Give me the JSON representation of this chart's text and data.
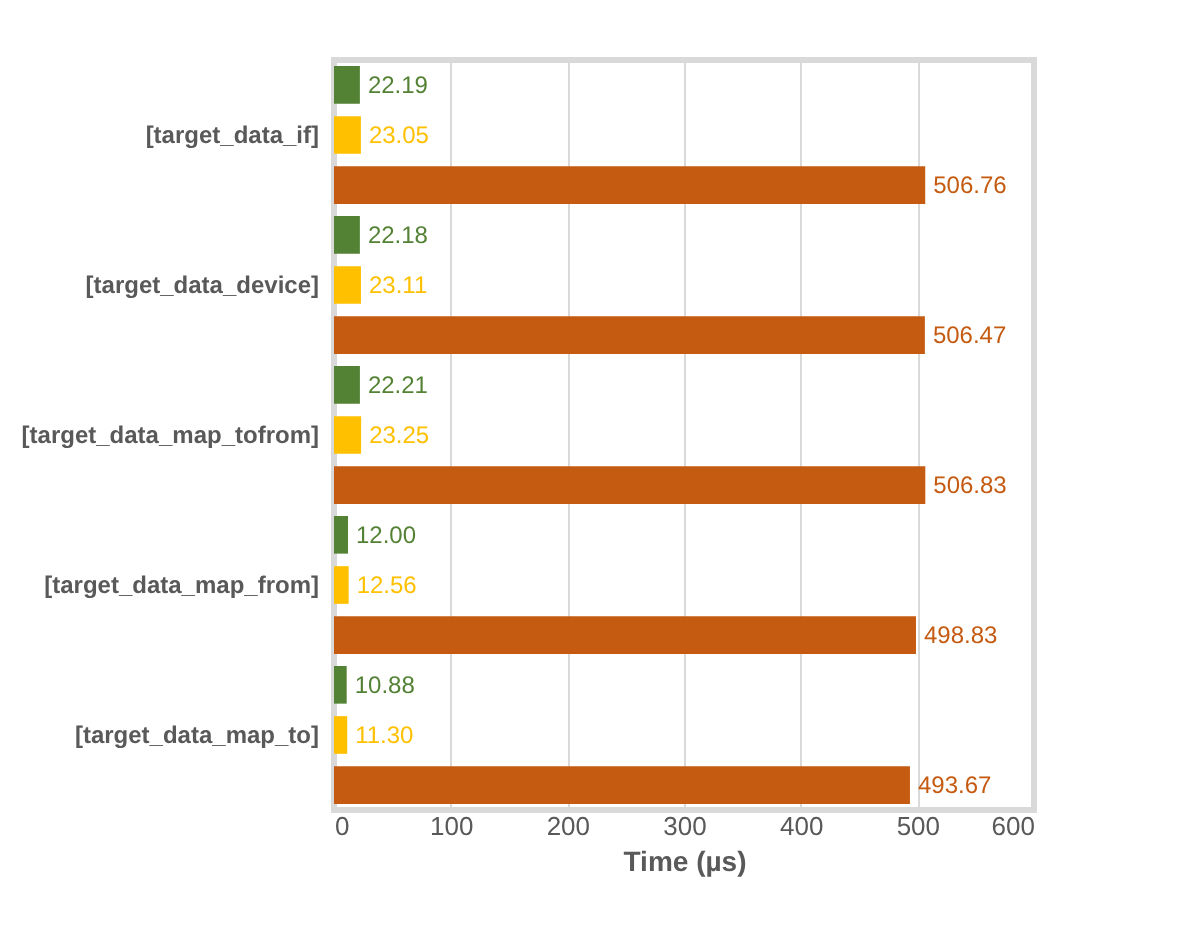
{
  "chart_data": {
    "type": "bar",
    "orientation": "horizontal",
    "xlabel": "Time (µs)",
    "categories": [
      "[target_data_if]",
      "[target_data_device]",
      "[target_data_map_tofrom]",
      "[target_data_map_from]",
      "[target_data_map_to]"
    ],
    "series": [
      {
        "color": "#548235",
        "values": [
          22.19,
          22.18,
          22.21,
          12.0,
          10.88
        ],
        "value_labels": [
          "22.19",
          "22.18",
          "22.21",
          "12.00",
          "10.88"
        ]
      },
      {
        "color": "#ffc000",
        "values": [
          23.05,
          23.11,
          23.25,
          12.56,
          11.3
        ],
        "value_labels": [
          "23.05",
          "23.11",
          "23.25",
          "12.56",
          "11.30"
        ]
      },
      {
        "color": "#c55a11",
        "values": [
          506.76,
          506.47,
          506.83,
          498.83,
          493.67
        ],
        "value_labels": [
          "506.76",
          "506.47",
          "506.83",
          "498.83",
          "493.67"
        ]
      }
    ],
    "xlim": [
      0,
      600
    ],
    "xticks": [
      0,
      100,
      200,
      300,
      400,
      500,
      600
    ],
    "grid": "x"
  }
}
